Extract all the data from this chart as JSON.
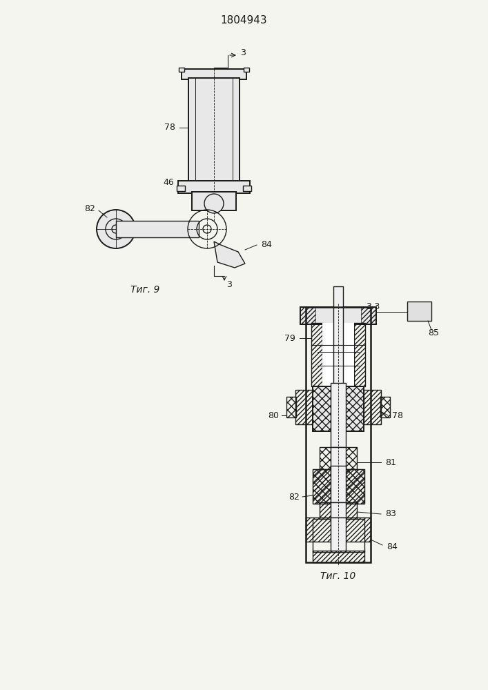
{
  "title": "1804943",
  "fig9_label": "Τиг. 9",
  "fig10_label": "Τиг. 10",
  "bg_color": "#f5f5f0",
  "line_color": "#1a1a1a",
  "hatch_color": "#1a1a1a",
  "labels": {
    "3_top": "3",
    "78_fig9": "78",
    "46": "46",
    "82_fig9": "82",
    "84_fig9": "84",
    "3_bottom": "3",
    "3_3": "3-3",
    "85": "85",
    "79": "79",
    "80": "80",
    "78_fig10": "78",
    "81": "81",
    "82_fig10": "82",
    "83": "83",
    "84_fig10": "84"
  }
}
